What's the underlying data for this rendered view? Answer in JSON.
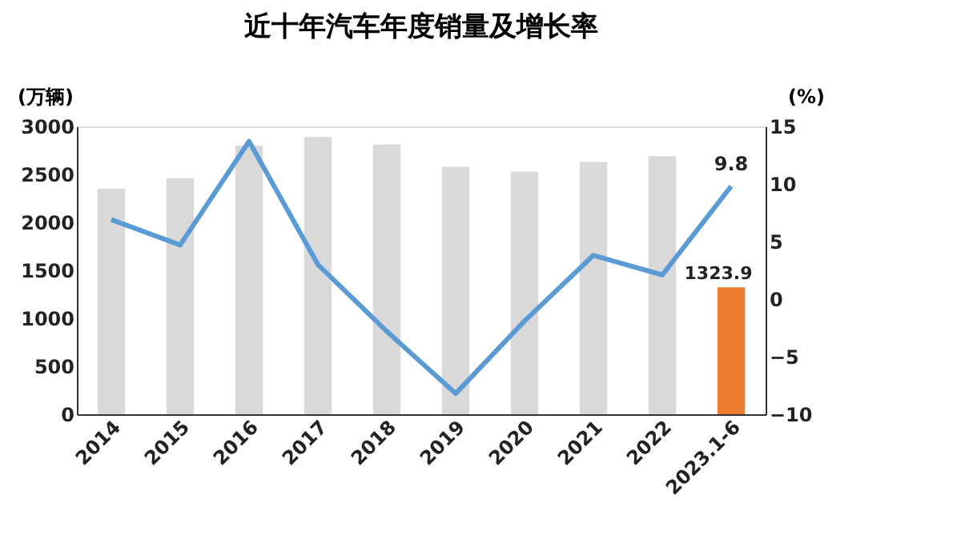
{
  "chart_data": {
    "type": "bar",
    "title": "近十年汽车年度销量及增长率",
    "ylabel": "(万辆)",
    "y2label": "(%)",
    "categories": [
      "2014",
      "2015",
      "2016",
      "2017",
      "2018",
      "2019",
      "2020",
      "2021",
      "2022",
      "2023.1-6"
    ],
    "ylim": [
      0,
      3000
    ],
    "yticks": [
      0,
      500,
      1000,
      1500,
      2000,
      2500,
      3000
    ],
    "y2lim": [
      -10,
      15
    ],
    "y2ticks": [
      -10,
      -5,
      0,
      5,
      10,
      15
    ],
    "grid": false,
    "series": [
      {
        "colors": [
          "#d9d9d9",
          "#d9d9d9",
          "#d9d9d9",
          "#d9d9d9",
          "#d9d9d9",
          "#d9d9d9",
          "#d9d9d9",
          "#d9d9d9",
          "#d9d9d9",
          "#ed7d31"
        ],
        "values": [
          2350,
          2460,
          2800,
          2890,
          2810,
          2580,
          2530,
          2630,
          2690,
          1323.9
        ],
        "value_labels": [
          null,
          null,
          null,
          null,
          null,
          null,
          null,
          null,
          null,
          "1323.9"
        ]
      },
      {
        "type": "line",
        "axis": "y2",
        "color": "#5b9bd5",
        "marker": "none",
        "values": [
          6.9,
          4.7,
          13.7,
          3.0,
          -2.8,
          -8.2,
          -1.9,
          3.8,
          2.1,
          9.8
        ],
        "value_labels": [
          null,
          null,
          null,
          null,
          null,
          null,
          null,
          null,
          null,
          "9.8"
        ]
      }
    ]
  }
}
